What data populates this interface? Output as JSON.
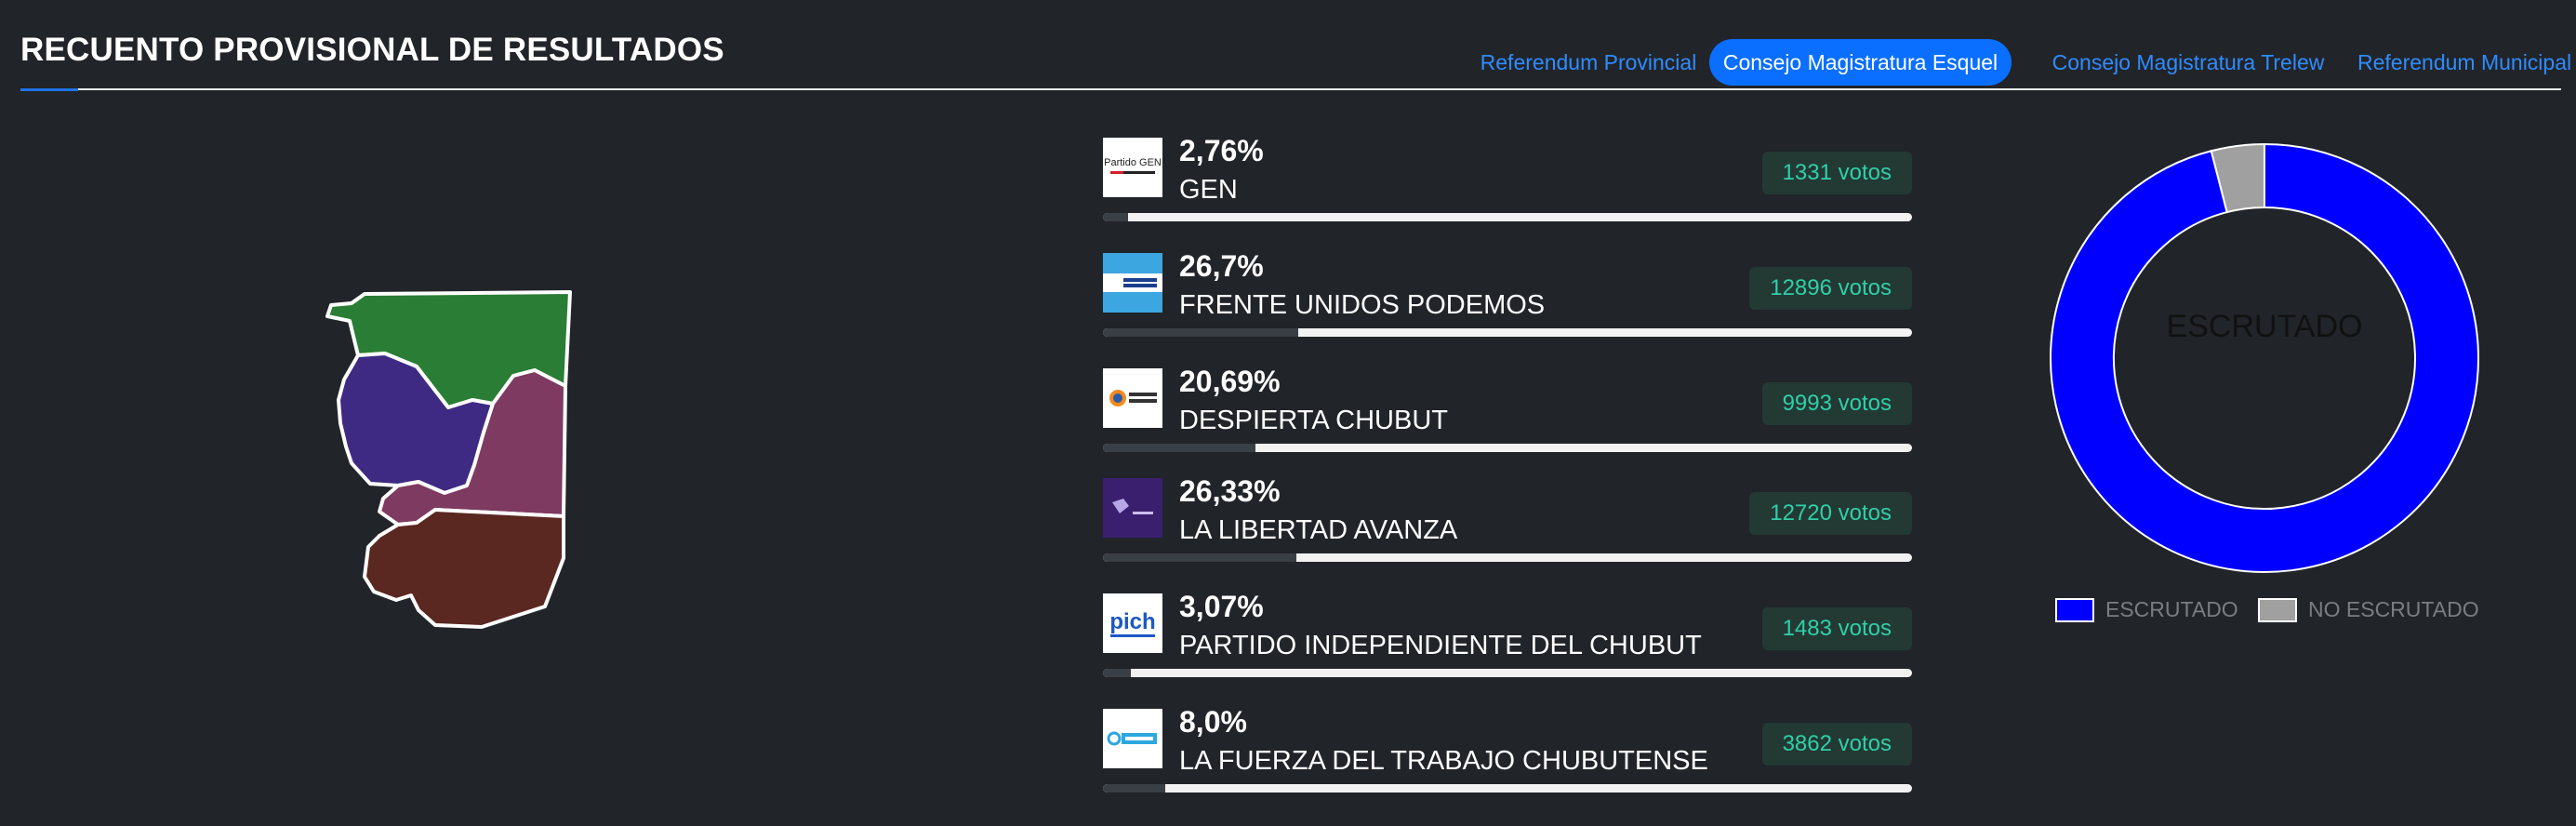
{
  "header": {
    "title": "RECUENTO PROVISIONAL DE RESULTADOS"
  },
  "tabs": [
    {
      "label": "Referendum Provincial",
      "active": false
    },
    {
      "label": "Consejo Magistratura Esquel",
      "active": true
    },
    {
      "label": "Consejo Magistratura Trelew",
      "active": false
    },
    {
      "label": "Referendum Municipal",
      "active": false
    }
  ],
  "results": [
    {
      "percent": "2,76%",
      "party": "GEN",
      "votes": "1331 votos",
      "share": 2.76,
      "logo_icon": "partido-gen-logo-icon"
    },
    {
      "percent": "26,7%",
      "party": "FRENTE UNIDOS PODEMOS",
      "votes": "12896 votos",
      "share": 26.7,
      "logo_icon": "unidos-podemos-logo-icon"
    },
    {
      "percent": "20,69%",
      "party": "DESPIERTA CHUBUT",
      "votes": "9993 votos",
      "share": 20.69,
      "logo_icon": "despierta-chubut-logo-icon"
    },
    {
      "percent": "26,33%",
      "party": "LA LIBERTAD AVANZA",
      "votes": "12720 votos",
      "share": 26.33,
      "logo_icon": "libertad-avanza-logo-icon"
    },
    {
      "percent": "3,07%",
      "party": "PARTIDO INDEPENDIENTE DEL CHUBUT",
      "votes": "1483 votos",
      "share": 3.07,
      "logo_icon": "pich-logo-icon"
    },
    {
      "percent": "8,0%",
      "party": "LA FUERZA DEL TRABAJO CHUBUTENSE",
      "votes": "3862 votos",
      "share": 8.0,
      "logo_icon": "fuerza-trabajo-logo-icon"
    }
  ],
  "donut": {
    "center_label": "ESCRUTADO",
    "scrutinized_fraction": 0.96,
    "legend": [
      {
        "label": "ESCRUTADO",
        "color": "#0000ff"
      },
      {
        "label": "NO ESCRUTADO",
        "color": "#a0a0a0"
      }
    ]
  },
  "map": {
    "region_colors": [
      "#2a7d34",
      "#3e2a82",
      "#7e3a60",
      "#5a2721"
    ]
  }
}
